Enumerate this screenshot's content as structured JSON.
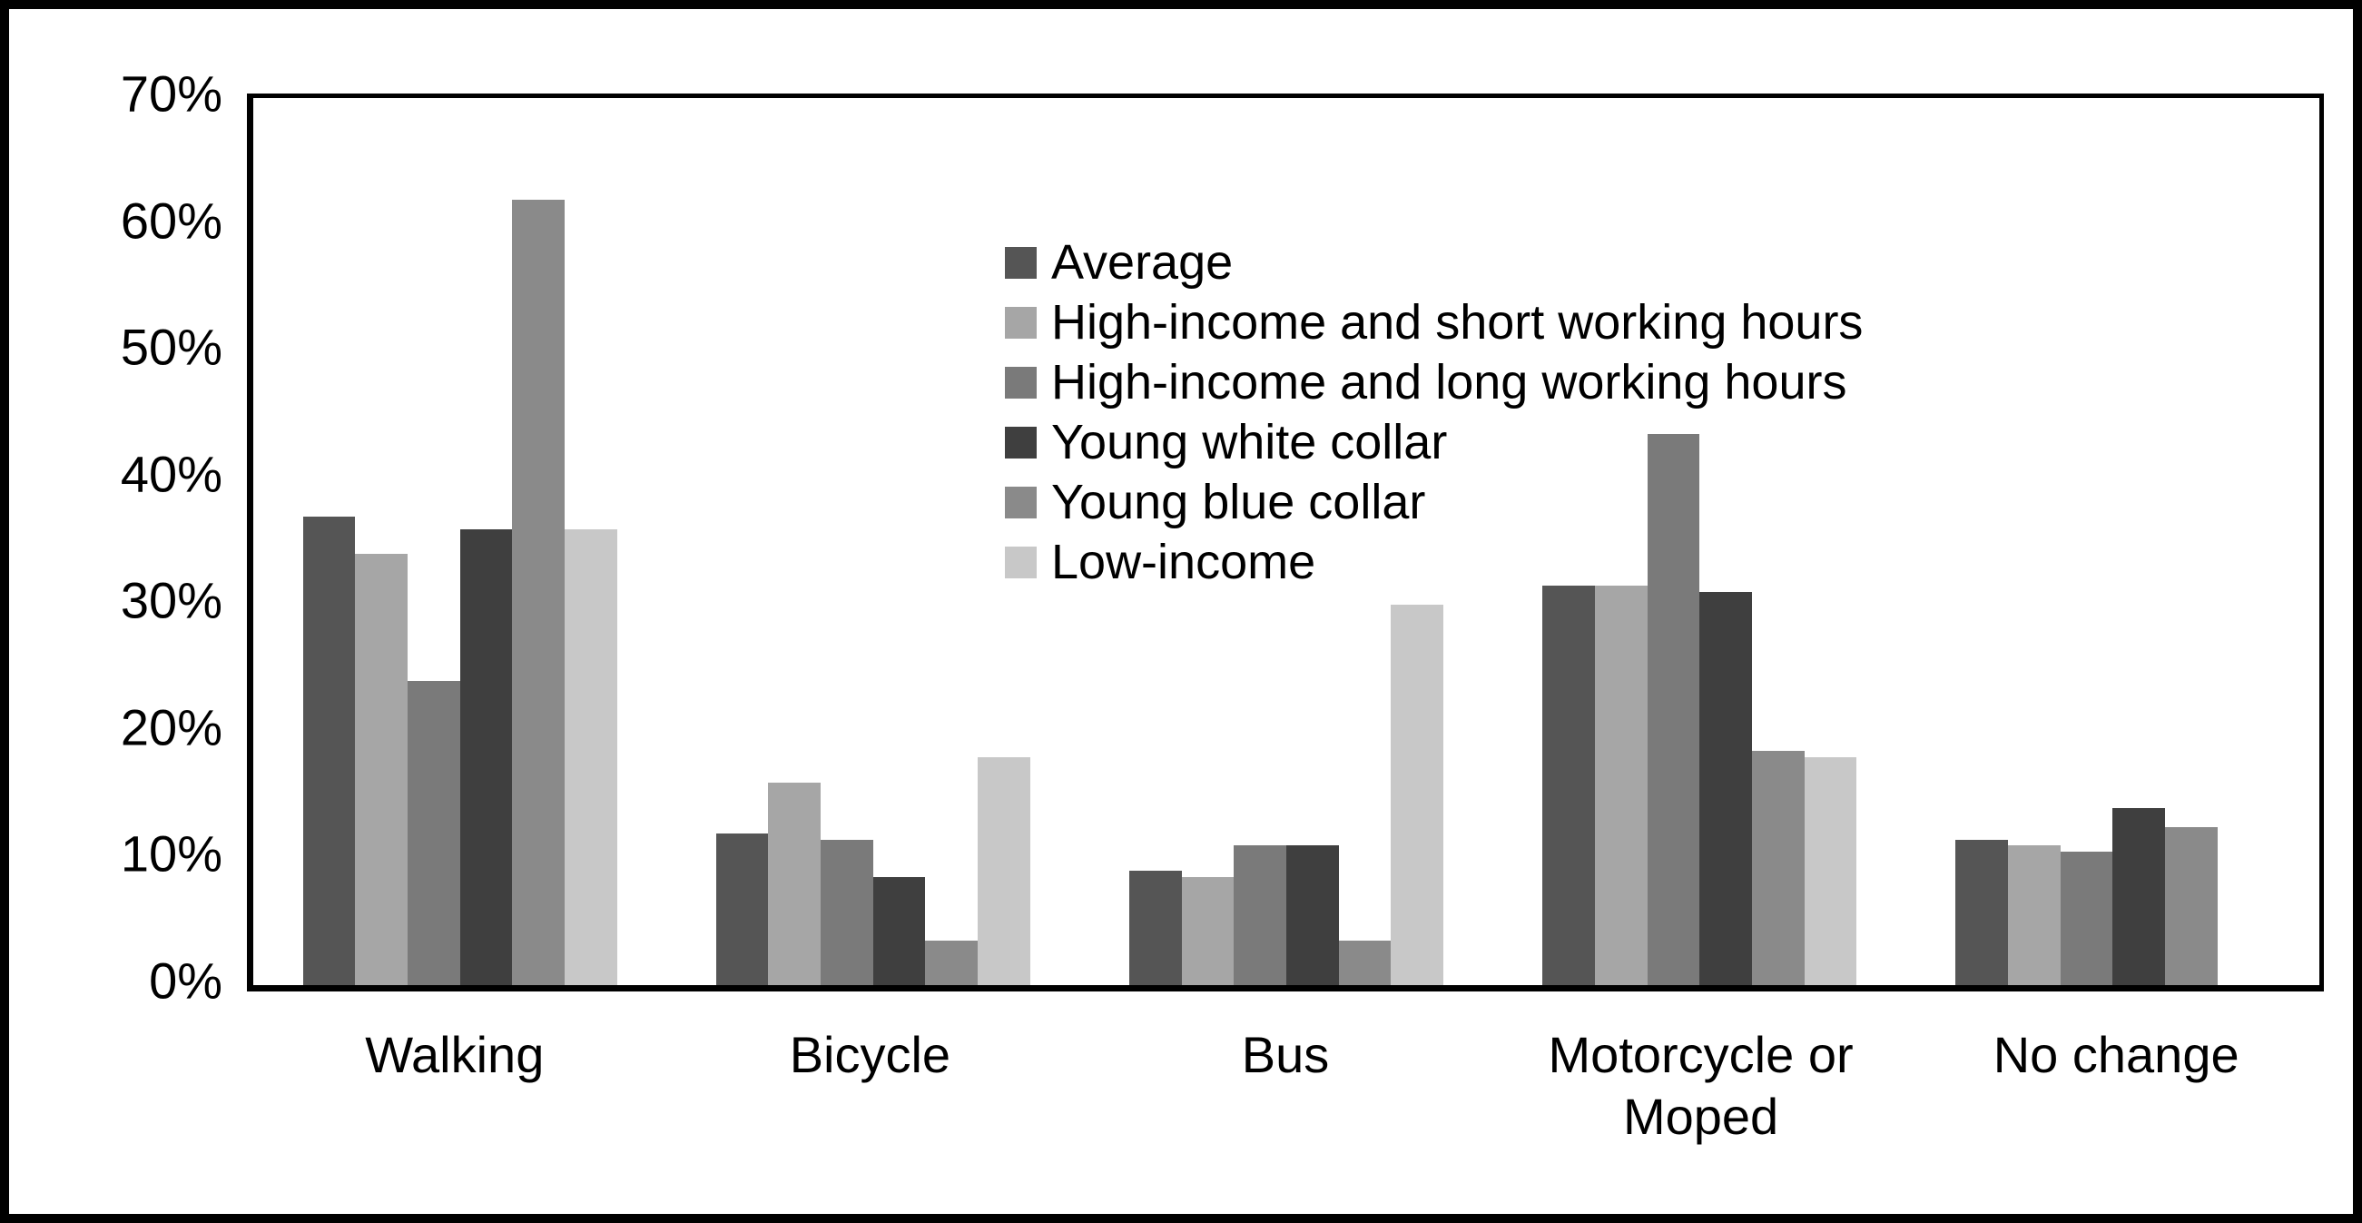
{
  "figure": {
    "background_color": "#ffffff",
    "frame_color": "#000000",
    "text_color": "#000000"
  },
  "chart_data": {
    "type": "bar",
    "title": "",
    "xlabel": "",
    "ylabel": "",
    "ylim": [
      0,
      70
    ],
    "y_tick_step": 10,
    "y_tick_labels": [
      "70%",
      "60%",
      "50%",
      "40%",
      "30%",
      "20%",
      "10%",
      "0%"
    ],
    "grid": false,
    "legend_position": "inside-top-center",
    "categories": [
      "Walking",
      "Bicycle",
      "Bus",
      "Motorcycle or Moped",
      "No change"
    ],
    "series": [
      {
        "name": "Average",
        "color": "#555555",
        "values": [
          37,
          12,
          9,
          31.5,
          11.5
        ]
      },
      {
        "name": "High-income and short working hours",
        "color": "#a6a6a6",
        "values": [
          34,
          16,
          8.5,
          31.5,
          11
        ]
      },
      {
        "name": "High-income and long working hours",
        "color": "#7a7a7a",
        "values": [
          24,
          11.5,
          11,
          43.5,
          10.5
        ]
      },
      {
        "name": "Young white collar",
        "color": "#3f3f3f",
        "values": [
          36,
          8.5,
          11,
          31,
          14
        ]
      },
      {
        "name": "Young blue collar",
        "color": "#8a8a8a",
        "values": [
          62,
          3.5,
          3.5,
          18.5,
          12.5
        ]
      },
      {
        "name": "Low-income",
        "color": "#c8c8c8",
        "values": [
          36,
          18,
          30,
          18,
          0
        ]
      }
    ]
  }
}
